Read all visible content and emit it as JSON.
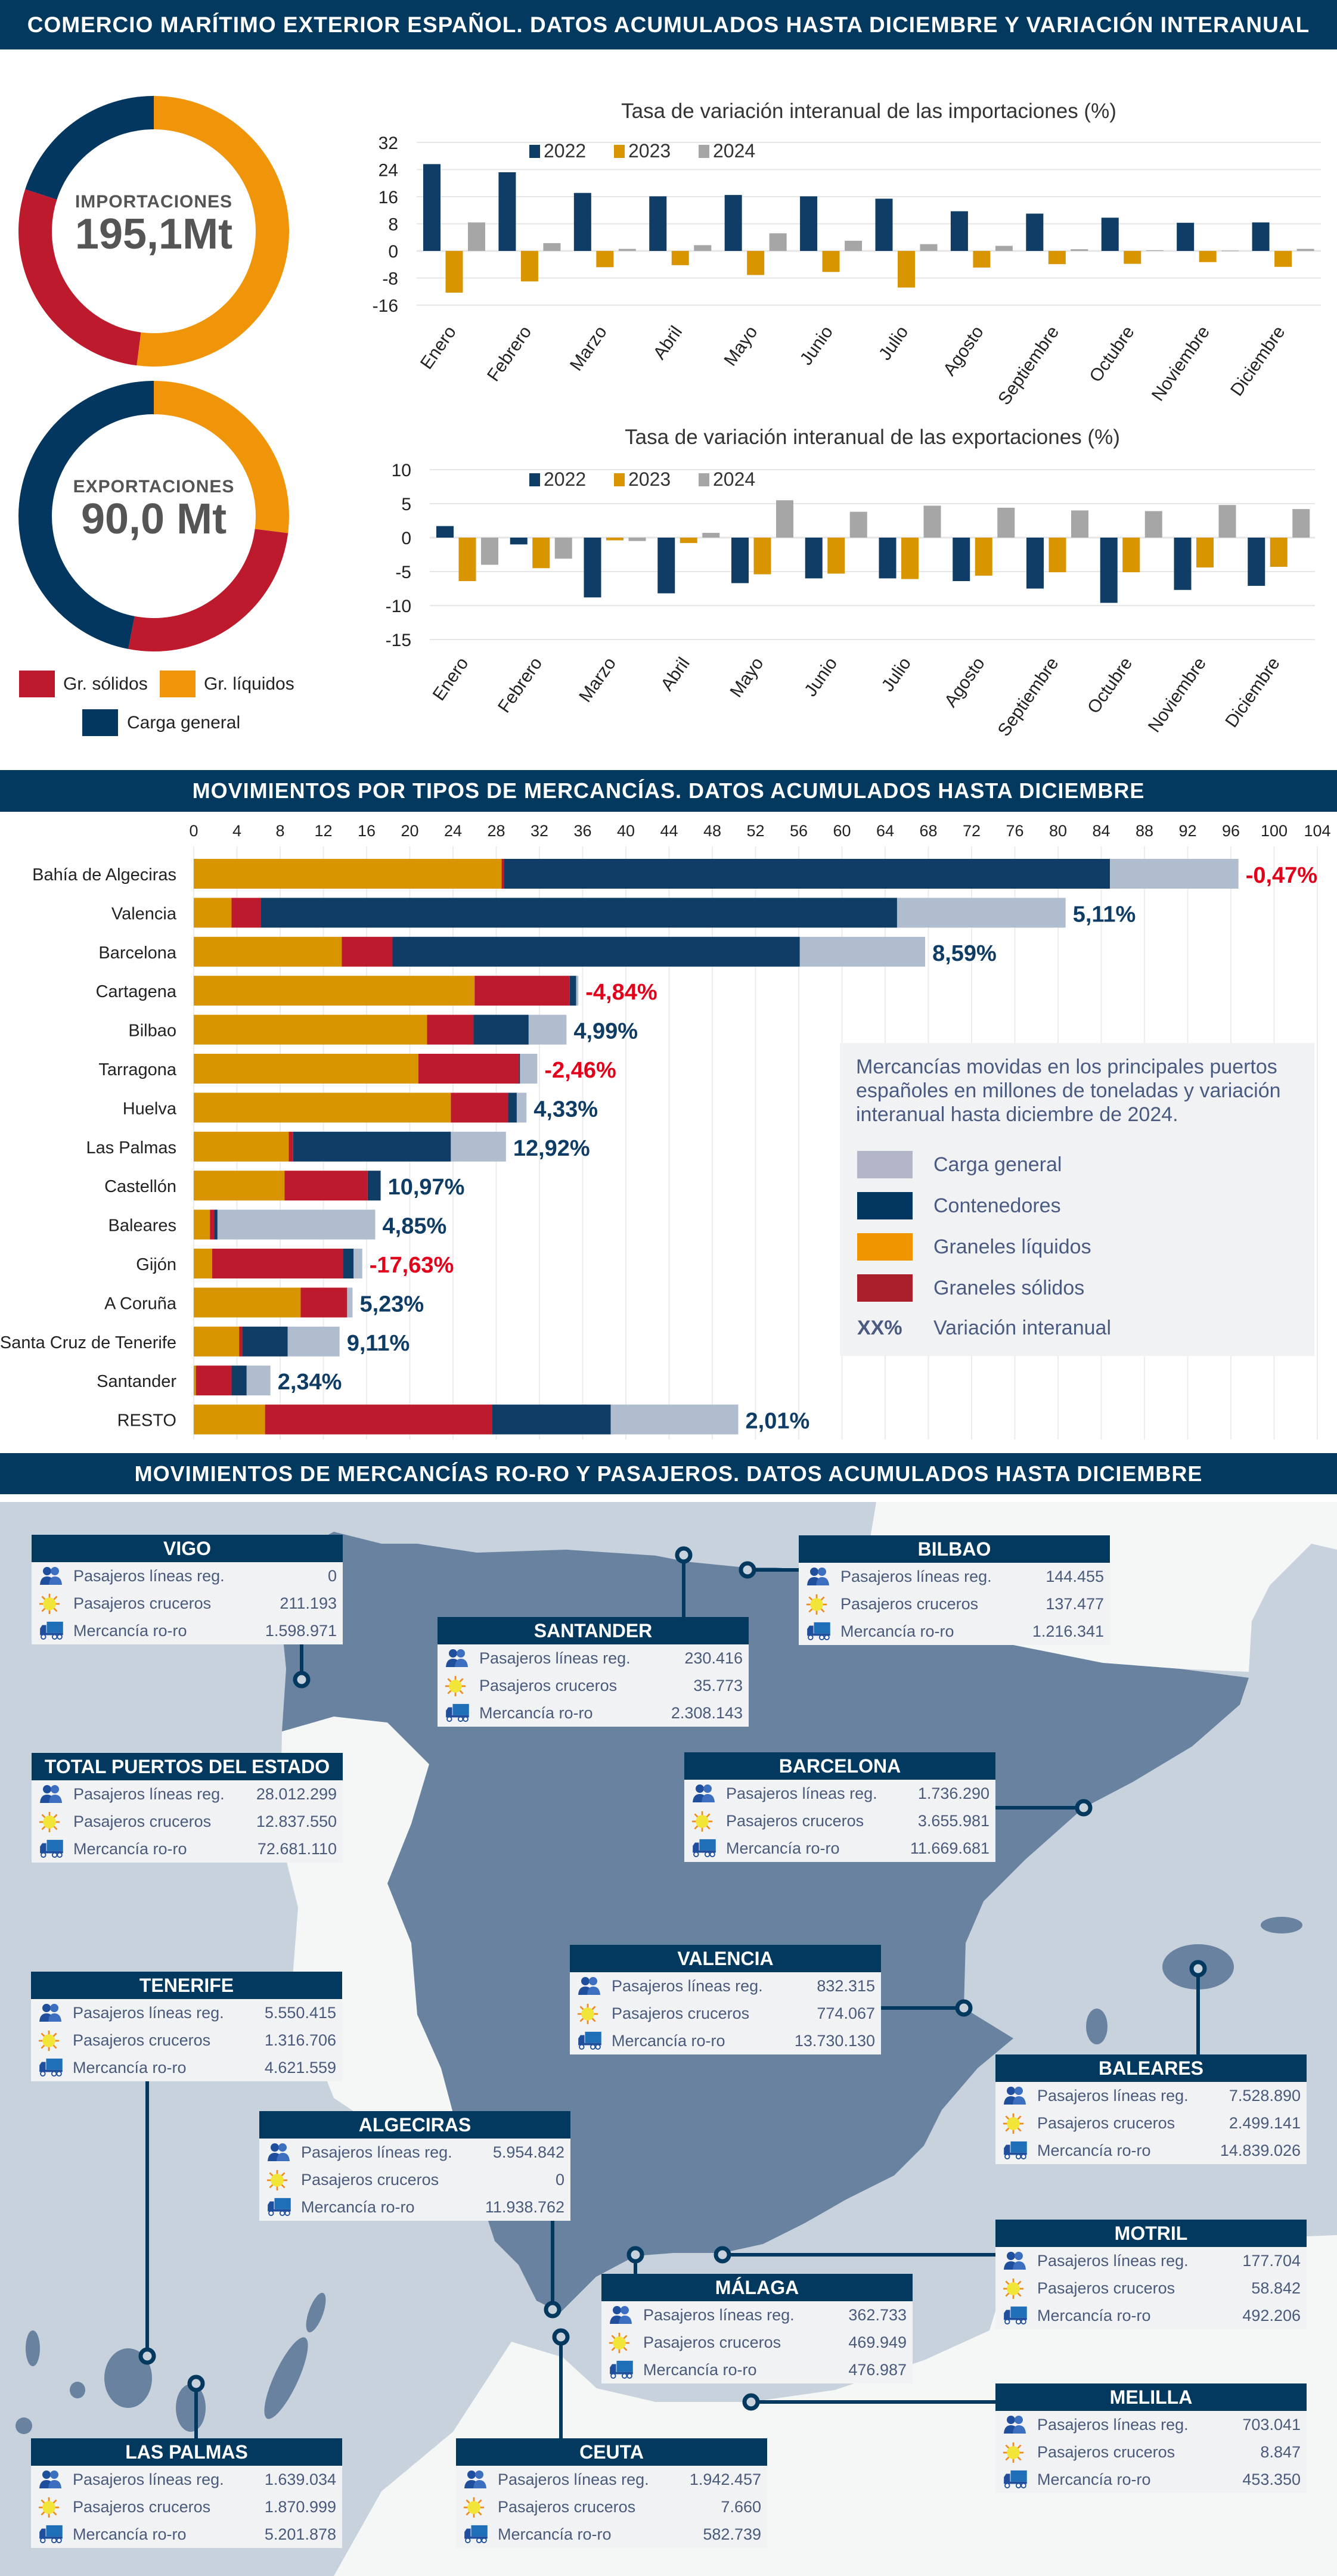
{
  "header": {
    "title": "COMERCIO MARÍTIMO EXTERIOR ESPAÑOL. DATOS ACUMULADOS HASTA DICIEMBRE Y VARIACIÓN INTERANUAL"
  },
  "colors": {
    "header": "#03395f",
    "solidos": "#bd1a2d",
    "liquidos": "#f0950a",
    "general_donut": "#04375f",
    "series_2022": "#103d66",
    "series_2023": "#d99500",
    "series_2024": "#a6a6a6",
    "contenedores": "#103d66",
    "carga_general": "#b0bdcf",
    "negative": "#e3001b",
    "positive": "#0f3c64"
  },
  "summary": {
    "imports": {
      "label": "IMPORTACIONES",
      "value": "195,1Mt",
      "shares_pct": {
        "liquidos": 52,
        "solidos": 28,
        "general": 20
      }
    },
    "exports": {
      "label": "EXPORTACIONES",
      "value": "90,0 Mt",
      "shares_pct": {
        "liquidos": 27,
        "solidos": 26,
        "general": 47
      }
    },
    "legend": {
      "solidos": "Gr. sólidos",
      "liquidos": "Gr. líquidos",
      "general": "Carga general"
    }
  },
  "chart_data": [
    {
      "type": "bar",
      "title": "Tasa de variación interanual de las importaciones (%)",
      "categories": [
        "Enero",
        "Febrero",
        "Marzo",
        "Abril",
        "Mayo",
        "Junio",
        "Julio",
        "Agosto",
        "Septiembre",
        "Octubre",
        "Noviembre",
        "Diciembre"
      ],
      "series": [
        {
          "name": "2022",
          "values": [
            25.6,
            23.2,
            17.1,
            16.1,
            16.5,
            16.1,
            15.4,
            11.7,
            11.0,
            9.8,
            8.3,
            8.4
          ]
        },
        {
          "name": "2023",
          "values": [
            -12.3,
            -9.0,
            -4.8,
            -4.2,
            -7.1,
            -6.2,
            -10.8,
            -4.9,
            -3.9,
            -3.8,
            -3.3,
            -4.7
          ]
        },
        {
          "name": "2024",
          "values": [
            8.4,
            2.3,
            0.6,
            1.7,
            5.2,
            3.0,
            2.0,
            1.5,
            0.5,
            0.2,
            0.1,
            0.6
          ]
        }
      ],
      "yticks": [
        32,
        24,
        16,
        8,
        0,
        -8,
        -16
      ],
      "ylim": [
        -16,
        32
      ],
      "grid": true,
      "legend": "top-left"
    },
    {
      "type": "bar",
      "title": "Tasa de variación interanual de las exportaciones (%)",
      "categories": [
        "Enero",
        "Febrero",
        "Marzo",
        "Abril",
        "Mayo",
        "Junio",
        "Julio",
        "Agosto",
        "Septiembre",
        "Octubre",
        "Noviembre",
        "Diciembre"
      ],
      "series": [
        {
          "name": "2022",
          "values": [
            1.7,
            -1.0,
            -8.8,
            -8.2,
            -6.7,
            -6.0,
            -6.0,
            -6.4,
            -7.5,
            -9.6,
            -7.7,
            -7.1
          ]
        },
        {
          "name": "2023",
          "values": [
            -6.4,
            -4.5,
            -0.4,
            -0.8,
            -5.4,
            -5.3,
            -6.1,
            -5.6,
            -5.1,
            -5.1,
            -4.4,
            -4.3
          ]
        },
        {
          "name": "2024",
          "values": [
            -4.0,
            -3.1,
            -0.5,
            0.7,
            5.5,
            3.8,
            4.7,
            4.4,
            4.0,
            3.9,
            4.8,
            4.2
          ]
        }
      ],
      "yticks": [
        10,
        5,
        0,
        -5,
        -10,
        -15
      ],
      "ylim": [
        -15,
        10
      ],
      "grid": true,
      "legend": "top-left"
    },
    {
      "type": "bar",
      "orientation": "horizontal-stacked",
      "title": "MOVIMIENTOS POR TIPOS DE MERCANCÍAS. DATOS ACUMULADOS HASTA DICIEMBRE",
      "xticks": [
        0,
        4,
        8,
        12,
        16,
        20,
        24,
        28,
        32,
        36,
        40,
        44,
        48,
        52,
        56,
        60,
        64,
        68,
        72,
        76,
        80,
        84,
        88,
        92,
        96,
        100,
        104
      ],
      "xlim": [
        0,
        104
      ],
      "categories": [
        "Bahía de Algeciras",
        "Valencia",
        "Barcelona",
        "Cartagena",
        "Bilbao",
        "Tarragona",
        "Huelva",
        "Las Palmas",
        "Castellón",
        "Baleares",
        "Gijón",
        "A Coruña",
        "Santa Cruz de Tenerife",
        "Santander",
        "RESTO"
      ],
      "series": [
        {
          "name": "Graneles líquidos",
          "values": [
            28.5,
            3.5,
            13.7,
            26.0,
            21.6,
            20.8,
            23.8,
            8.8,
            8.4,
            1.5,
            1.7,
            9.9,
            4.2,
            0.2,
            6.6
          ]
        },
        {
          "name": "Graneles sólidos",
          "values": [
            0.2,
            2.7,
            4.7,
            8.8,
            4.3,
            9.3,
            5.3,
            0.4,
            7.7,
            0.4,
            12.1,
            4.3,
            0.3,
            3.3,
            21.0
          ]
        },
        {
          "name": "Contenedores",
          "values": [
            56.1,
            58.9,
            37.7,
            0.6,
            5.1,
            0.1,
            0.8,
            14.6,
            1.2,
            0.3,
            1.0,
            0.0,
            4.2,
            1.4,
            11.0
          ]
        },
        {
          "name": "Carga general",
          "values": [
            11.9,
            15.6,
            11.6,
            0.2,
            3.5,
            1.6,
            0.9,
            5.1,
            0.0,
            14.6,
            0.8,
            0.5,
            4.8,
            2.2,
            11.8
          ]
        }
      ],
      "variation_labels": [
        "-0,47%",
        "5,11%",
        "8,59%",
        "-4,84%",
        "4,99%",
        "-2,46%",
        "4,33%",
        "12,92%",
        "10,97%",
        "4,85%",
        "-17,63%",
        "5,23%",
        "9,11%",
        "2,34%",
        "2,01%"
      ],
      "grid": true,
      "legend": {
        "note": "Mercancías movidas en los principales puertos españoles en millones de toneladas y variación interanual hasta diciembre de 2024.",
        "items": [
          "Carga general",
          "Contenedores",
          "Graneles líquidos",
          "Graneles sólidos"
        ],
        "variation_symbol": "XX%",
        "variation_label": "Variación interanual"
      }
    }
  ],
  "section3": {
    "title": "MOVIMIENTOS DE MERCANCÍAS RO-RO Y PASAJEROS.  DATOS ACUMULADOS HASTA DICIEMBRE",
    "row_labels": [
      "Pasajeros líneas reg.",
      "Pasajeros cruceros",
      "Mercancía ro-ro"
    ],
    "row_icons": [
      "people-icon",
      "sun-icon",
      "truck-icon"
    ],
    "ports": [
      {
        "name": "VIGO",
        "values": [
          "0",
          "211.193",
          "1.598.971"
        ]
      },
      {
        "name": "SANTANDER",
        "values": [
          "230.416",
          "35.773",
          "2.308.143"
        ]
      },
      {
        "name": "BILBAO",
        "values": [
          "144.455",
          "137.477",
          "1.216.341"
        ]
      },
      {
        "name": "TOTAL PUERTOS DEL ESTADO",
        "values": [
          "28.012.299",
          "12.837.550",
          "72.681.110"
        ]
      },
      {
        "name": "BARCELONA",
        "values": [
          "1.736.290",
          "3.655.981",
          "11.669.681"
        ]
      },
      {
        "name": "TENERIFE",
        "values": [
          "5.550.415",
          "1.316.706",
          "4.621.559"
        ]
      },
      {
        "name": "VALENCIA",
        "values": [
          "832.315",
          "774.067",
          "13.730.130"
        ]
      },
      {
        "name": "BALEARES",
        "values": [
          "7.528.890",
          "2.499.141",
          "14.839.026"
        ]
      },
      {
        "name": "ALGECIRAS",
        "values": [
          "5.954.842",
          "0",
          "11.938.762"
        ]
      },
      {
        "name": "MOTRIL",
        "values": [
          "177.704",
          "58.842",
          "492.206"
        ]
      },
      {
        "name": "MÁLAGA",
        "values": [
          "362.733",
          "469.949",
          "476.987"
        ]
      },
      {
        "name": "MELILLA",
        "values": [
          "703.041",
          "8.847",
          "453.350"
        ]
      },
      {
        "name": "LAS PALMAS",
        "values": [
          "1.639.034",
          "1.870.999",
          "5.201.878"
        ]
      },
      {
        "name": "CEUTA",
        "values": [
          "1.942.457",
          "7.660",
          "582.739"
        ]
      }
    ]
  }
}
